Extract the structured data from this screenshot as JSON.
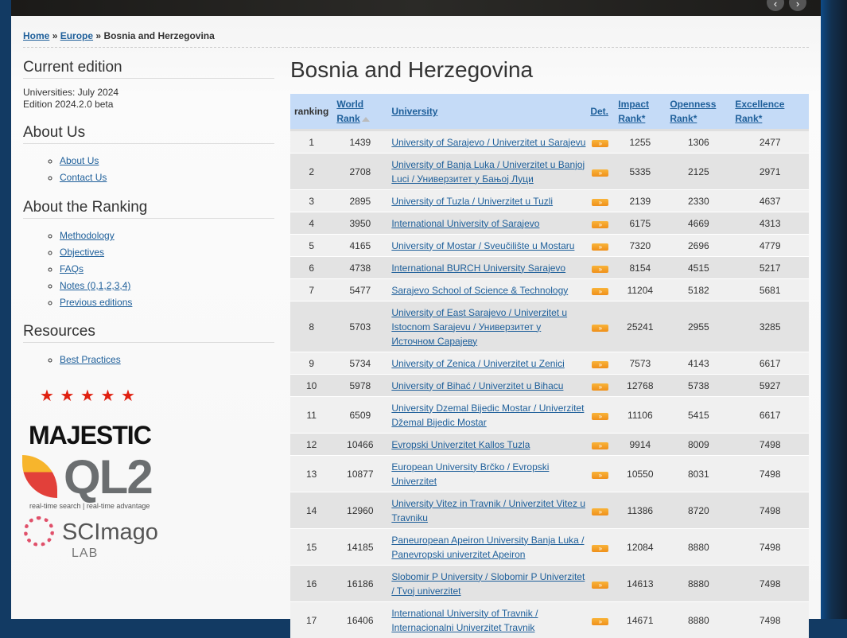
{
  "breadcrumb": {
    "home": "Home",
    "sep": "»",
    "region": "Europe",
    "current": "Bosnia and Herzegovina"
  },
  "sidebar": {
    "current_edition": {
      "title": "Current edition",
      "line1": "Universities: July 2024",
      "line2": "Edition 2024.2.0 beta"
    },
    "about_us": {
      "title": "About Us",
      "items": [
        "About Us",
        "Contact Us"
      ]
    },
    "about_ranking": {
      "title": "About the Ranking",
      "items": [
        "Methodology",
        "Objectives",
        "FAQs",
        "Notes (0,1,2,3,4)",
        "Previous editions"
      ]
    },
    "resources": {
      "title": "Resources",
      "items": [
        "Best Practices"
      ]
    },
    "logos": {
      "majestic": "MAJESTIC",
      "ql2": "QL2",
      "ql2_tagline": "real-time search | real-time advantage",
      "scimago": "SCImago",
      "scimago_sub": "LAB"
    }
  },
  "page_title": "Bosnia and Herzegovina",
  "table": {
    "headers": {
      "ranking": "ranking",
      "world_rank_1": "World",
      "world_rank_2": "Rank",
      "university": "University",
      "det": "Det.",
      "impact_1": "Impact",
      "impact_2": "Rank*",
      "openness_1": "Openness",
      "openness_2": "Rank*",
      "excellence_1": "Excellence",
      "excellence_2": "Rank*"
    },
    "det_label": "»",
    "rows": [
      {
        "rank": "1",
        "world": "1439",
        "name": "University of Sarajevo / Univerzitet u Sarajevu",
        "impact": "1255",
        "openness": "1306",
        "excellence": "2477"
      },
      {
        "rank": "2",
        "world": "2708",
        "name": "University of Banja Luka / Univerzitet u Banjoj Luci / Универзитет у Бањој Луци",
        "impact": "5335",
        "openness": "2125",
        "excellence": "2971"
      },
      {
        "rank": "3",
        "world": "2895",
        "name": "University of Tuzla / Univerzitet u Tuzli",
        "impact": "2139",
        "openness": "2330",
        "excellence": "4637"
      },
      {
        "rank": "4",
        "world": "3950",
        "name": "International University of Sarajevo",
        "impact": "6175",
        "openness": "4669",
        "excellence": "4313"
      },
      {
        "rank": "5",
        "world": "4165",
        "name": "University of Mostar / Sveučilište u Mostaru",
        "impact": "7320",
        "openness": "2696",
        "excellence": "4779"
      },
      {
        "rank": "6",
        "world": "4738",
        "name": "International BURCH University Sarajevo",
        "impact": "8154",
        "openness": "4515",
        "excellence": "5217"
      },
      {
        "rank": "7",
        "world": "5477",
        "name": "Sarajevo School of Science & Technology",
        "impact": "11204",
        "openness": "5182",
        "excellence": "5681"
      },
      {
        "rank": "8",
        "world": "5703",
        "name": "University of East Sarajevo / Univerzitet u Istocnom Sarajevu / Универзитет у Источном Сарајеву",
        "impact": "25241",
        "openness": "2955",
        "excellence": "3285"
      },
      {
        "rank": "9",
        "world": "5734",
        "name": "University of Zenica / Univerzitet u Zenici",
        "impact": "7573",
        "openness": "4143",
        "excellence": "6617"
      },
      {
        "rank": "10",
        "world": "5978",
        "name": "University of Bihać / Univerzitet u Bihacu",
        "impact": "12768",
        "openness": "5738",
        "excellence": "5927"
      },
      {
        "rank": "11",
        "world": "6509",
        "name": "University Dzemal Bijedic Mostar / Univerzitet Džemal Bijedic Mostar",
        "impact": "11106",
        "openness": "5415",
        "excellence": "6617"
      },
      {
        "rank": "12",
        "world": "10466",
        "name": "Evropski Univerzitet Kallos Tuzla",
        "impact": "9914",
        "openness": "8009",
        "excellence": "7498"
      },
      {
        "rank": "13",
        "world": "10877",
        "name": "European University Brčko / Evropski Univerzitet",
        "impact": "10550",
        "openness": "8031",
        "excellence": "7498"
      },
      {
        "rank": "14",
        "world": "12960",
        "name": "University Vitez in Travnik / Univerzitet Vitez u Travniku",
        "impact": "11386",
        "openness": "8720",
        "excellence": "7498"
      },
      {
        "rank": "15",
        "world": "14185",
        "name": "Paneuropean Apeiron University Banja Luka / Panevropski univerzitet Apeiron",
        "impact": "12084",
        "openness": "8880",
        "excellence": "7498"
      },
      {
        "rank": "16",
        "world": "16186",
        "name": "Slobomir P University / Slobomir P Univerzitet / Tvoj univerzitet",
        "impact": "14613",
        "openness": "8880",
        "excellence": "7498"
      },
      {
        "rank": "17",
        "world": "16406",
        "name": "International University of Travnik / Internacionalni Univerzitet Travnik",
        "impact": "14671",
        "openness": "8880",
        "excellence": "7498"
      }
    ]
  }
}
